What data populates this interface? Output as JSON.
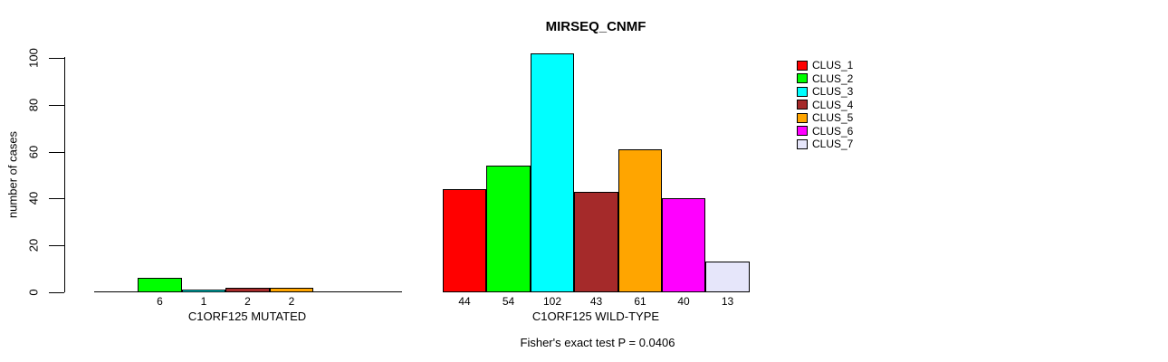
{
  "chart_data": {
    "type": "bar",
    "title": "MIRSEQ_CNMF",
    "ylabel": "number of cases",
    "ylim": [
      0,
      102
    ],
    "yticks": [
      0,
      20,
      40,
      60,
      80,
      100
    ],
    "grid": false,
    "legend": {
      "position": "right",
      "entries": [
        {
          "label": "CLUS_1",
          "color": "#FF0000"
        },
        {
          "label": "CLUS_2",
          "color": "#00FF00"
        },
        {
          "label": "CLUS_3",
          "color": "#00FFFF"
        },
        {
          "label": "CLUS_4",
          "color": "#A52A2A"
        },
        {
          "label": "CLUS_5",
          "color": "#FFA500"
        },
        {
          "label": "CLUS_6",
          "color": "#FF00FF"
        },
        {
          "label": "CLUS_7",
          "color": "#E6E6FA"
        }
      ]
    },
    "groups": [
      {
        "label": "C1ORF125 MUTATED",
        "values": [
          0,
          6,
          1,
          2,
          2,
          0,
          0
        ],
        "bar_labels": [
          "",
          "6",
          "1",
          "2",
          "2",
          "",
          ""
        ]
      },
      {
        "label": "C1ORF125 WILD-TYPE",
        "values": [
          44,
          54,
          102,
          43,
          61,
          40,
          13
        ],
        "bar_labels": [
          "44",
          "54",
          "102",
          "43",
          "61",
          "40",
          "13"
        ]
      }
    ],
    "annotation": "Fisher's exact test P = 0.0406"
  }
}
